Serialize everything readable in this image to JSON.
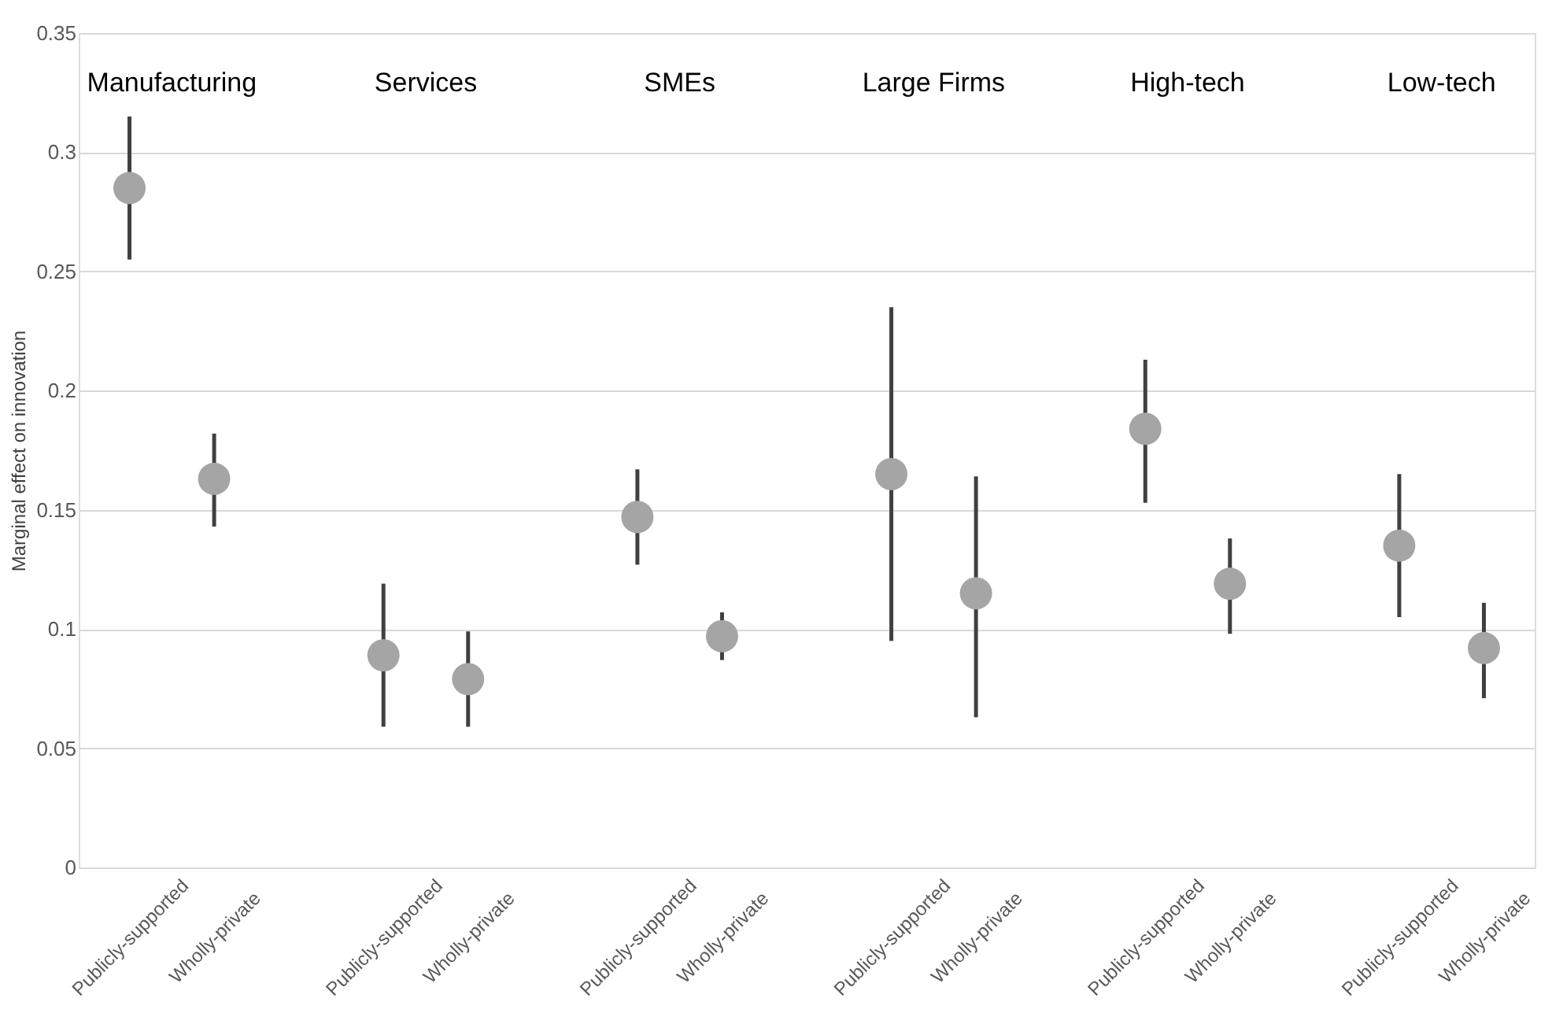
{
  "chart_data": {
    "type": "scatter",
    "ylabel": "Marginal effect on innovation",
    "categories": [
      "Publicly-supported",
      "Wholly-private",
      "Publicly-supported",
      "Wholly-private",
      "Publicly-supported",
      "Wholly-private",
      "Publicly-supported",
      "Wholly-private",
      "Publicly-supported",
      "Wholly-private",
      "Publicly-supported",
      "Wholly-private"
    ],
    "values": [
      0.285,
      0.163,
      0.089,
      0.079,
      0.147,
      0.097,
      0.165,
      0.115,
      0.184,
      0.119,
      0.135,
      0.092
    ],
    "errors": [
      [
        0.255,
        0.315
      ],
      [
        0.143,
        0.182
      ],
      [
        0.059,
        0.119
      ],
      [
        0.059,
        0.099
      ],
      [
        0.127,
        0.167
      ],
      [
        0.087,
        0.107
      ],
      [
        0.095,
        0.235
      ],
      [
        0.063,
        0.164
      ],
      [
        0.153,
        0.213
      ],
      [
        0.098,
        0.138
      ],
      [
        0.105,
        0.165
      ],
      [
        0.071,
        0.111
      ]
    ],
    "color": "#a5a5a5",
    "marker": "circle",
    "grid": "y",
    "ylim": [
      0,
      0.35
    ],
    "yticks": [
      0,
      0.05,
      0.1,
      0.15,
      0.2,
      0.25,
      0.3,
      0.35
    ],
    "annotations": [
      "Manufacturing",
      "Services",
      "SMEs",
      "Large Firms",
      "High-tech",
      "Low-tech"
    ]
  }
}
